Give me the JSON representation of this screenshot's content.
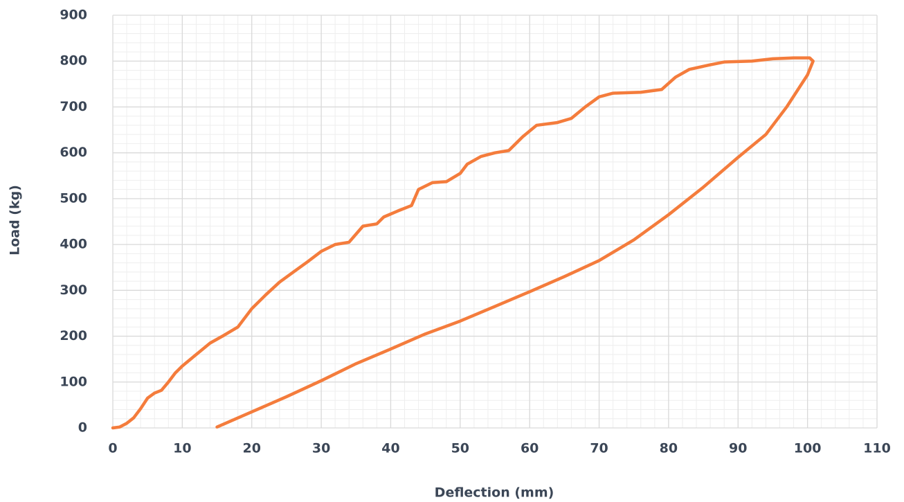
{
  "chart_data": {
    "type": "line",
    "x_label": "Deflection (mm)",
    "y_label": "Load (kg)",
    "x": [
      0,
      1,
      2,
      3,
      4,
      5,
      6,
      7,
      8,
      9,
      10,
      12,
      14,
      16,
      18,
      20,
      22,
      24,
      26,
      28,
      30,
      32,
      34,
      36,
      38,
      39,
      41,
      43,
      44,
      46,
      48,
      50,
      51,
      53,
      55,
      57,
      59,
      61,
      64,
      66,
      68,
      70,
      72,
      76,
      79,
      81,
      83,
      86,
      88,
      92,
      95,
      98,
      100.3,
      100.8,
      100,
      97,
      94,
      90,
      85,
      80,
      75,
      70,
      65,
      60,
      55,
      50,
      45,
      40,
      35,
      30,
      25,
      20,
      15
    ],
    "series": [
      {
        "color": "#f47c3c",
        "values": [
          0,
          2,
          10,
          22,
          42,
          65,
          76,
          82,
          100,
          120,
          135,
          160,
          185,
          202,
          220,
          260,
          290,
          318,
          340,
          362,
          385,
          400,
          405,
          440,
          445,
          460,
          473,
          485,
          520,
          535,
          537,
          555,
          575,
          592,
          600,
          605,
          635,
          660,
          666,
          675,
          700,
          722,
          730,
          732,
          738,
          765,
          782,
          792,
          798,
          800,
          805,
          807,
          807,
          800,
          770,
          700,
          640,
          590,
          525,
          465,
          410,
          365,
          330,
          297,
          265,
          233,
          205,
          172,
          140,
          103,
          68,
          35,
          2
        ]
      }
    ],
    "xlim": [
      0,
      110
    ],
    "xticks": [
      0,
      10,
      20,
      30,
      40,
      50,
      60,
      70,
      80,
      90,
      100,
      110
    ],
    "ylim": [
      0,
      900
    ],
    "yticks": [
      0,
      100,
      200,
      300,
      400,
      500,
      600,
      700,
      800,
      900
    ],
    "grid": true,
    "minor_grid": {
      "x": 2,
      "y": 20
    }
  }
}
